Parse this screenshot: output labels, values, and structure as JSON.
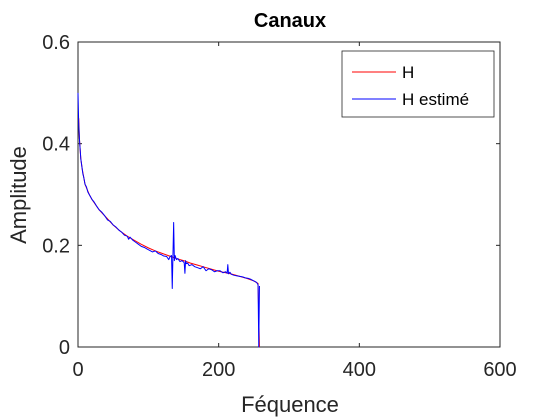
{
  "chart_data": {
    "type": "line",
    "title": "Canaux",
    "xlabel": "Féquence",
    "ylabel": "Amplitude",
    "xlim": [
      0,
      600
    ],
    "ylim": [
      0,
      0.6
    ],
    "xticks": [
      0,
      200,
      400,
      600
    ],
    "xtick_labels": [
      "0",
      "200",
      "400",
      "600"
    ],
    "yticks": [
      0,
      0.2,
      0.4,
      0.6
    ],
    "ytick_labels": [
      "0",
      "0.2",
      "0.4",
      "0.6"
    ],
    "grid": false,
    "legend_position": "top-right",
    "series": [
      {
        "name": "H",
        "color": "#ff0000",
        "x": [
          1,
          2,
          3,
          4,
          6,
          8,
          10,
          13,
          16,
          20,
          25,
          30,
          40,
          50,
          60,
          70,
          80,
          90,
          100,
          110,
          120,
          130,
          140,
          150,
          160,
          170,
          180,
          190,
          200,
          210,
          220,
          230,
          240,
          250,
          256,
          257,
          258
        ],
        "y": [
          0.45,
          0.41,
          0.39,
          0.37,
          0.35,
          0.335,
          0.32,
          0.31,
          0.3,
          0.29,
          0.28,
          0.27,
          0.255,
          0.24,
          0.228,
          0.218,
          0.21,
          0.202,
          0.195,
          0.189,
          0.184,
          0.179,
          0.174,
          0.17,
          0.165,
          0.161,
          0.157,
          0.153,
          0.149,
          0.146,
          0.143,
          0.139,
          0.135,
          0.13,
          0.125,
          0.06,
          0.0
        ]
      },
      {
        "name": "H estimé",
        "color": "#0000ff",
        "x": [
          0,
          1,
          2,
          3,
          4,
          5,
          6,
          7,
          8,
          10,
          12,
          14,
          16,
          18,
          20,
          23,
          26,
          30,
          34,
          38,
          42,
          46,
          50,
          54,
          58,
          62,
          66,
          70,
          72,
          74,
          78,
          82,
          86,
          90,
          94,
          98,
          102,
          106,
          110,
          114,
          118,
          122,
          126,
          129,
          131,
          133,
          134,
          135,
          136,
          137,
          138,
          140,
          142,
          145,
          148,
          151,
          152,
          153,
          154,
          156,
          158,
          162,
          166,
          170,
          174,
          178,
          182,
          186,
          190,
          194,
          198,
          202,
          206,
          210,
          212,
          213,
          214,
          216,
          218,
          222,
          226,
          230,
          234,
          238,
          242,
          246,
          250,
          253,
          255,
          256,
          257,
          258
        ],
        "y": [
          0.5,
          0.44,
          0.41,
          0.39,
          0.37,
          0.36,
          0.35,
          0.34,
          0.335,
          0.32,
          0.315,
          0.305,
          0.3,
          0.295,
          0.29,
          0.285,
          0.278,
          0.27,
          0.265,
          0.258,
          0.25,
          0.247,
          0.24,
          0.236,
          0.23,
          0.226,
          0.22,
          0.218,
          0.212,
          0.216,
          0.21,
          0.206,
          0.202,
          0.198,
          0.196,
          0.193,
          0.19,
          0.187,
          0.189,
          0.184,
          0.182,
          0.179,
          0.178,
          0.172,
          0.178,
          0.18,
          0.115,
          0.18,
          0.245,
          0.17,
          0.18,
          0.172,
          0.174,
          0.168,
          0.17,
          0.166,
          0.145,
          0.17,
          0.164,
          0.165,
          0.16,
          0.162,
          0.158,
          0.156,
          0.154,
          0.158,
          0.15,
          0.154,
          0.152,
          0.148,
          0.15,
          0.15,
          0.146,
          0.148,
          0.145,
          0.162,
          0.144,
          0.147,
          0.143,
          0.141,
          0.14,
          0.139,
          0.138,
          0.136,
          0.135,
          0.133,
          0.13,
          0.128,
          0.125,
          0.122,
          0.0,
          0.12
        ]
      }
    ]
  }
}
